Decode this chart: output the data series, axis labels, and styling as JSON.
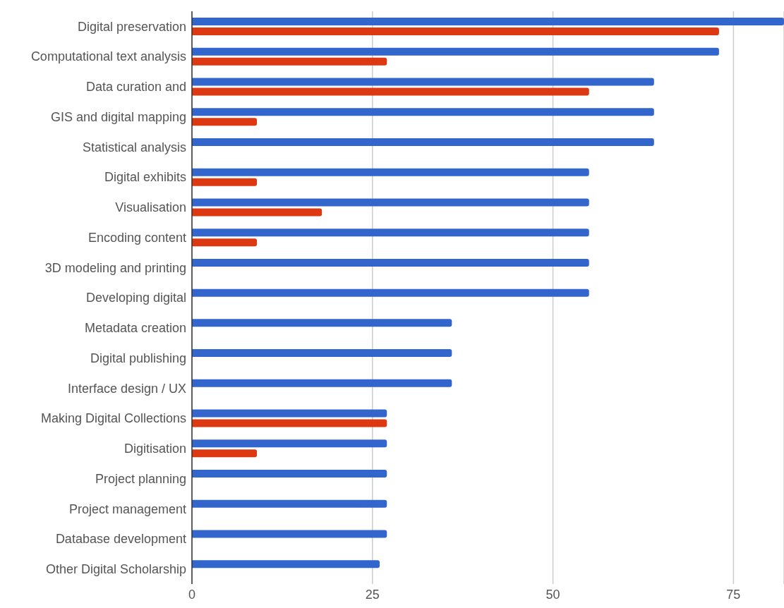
{
  "chart_data": {
    "type": "bar",
    "orientation": "horizontal",
    "categories": [
      "Digital preservation",
      "Computational text analysis",
      "Data curation and",
      "GIS and digital mapping",
      "Statistical analysis",
      "Digital exhibits",
      "Visualisation",
      "Encoding content",
      "3D modeling and printing",
      "Developing digital",
      "Metadata creation",
      "Digital publishing",
      "Interface design / UX",
      "Making Digital Collections",
      "Digitisation",
      "Project planning",
      "Project management",
      "Database development",
      "Other Digital Scholarship"
    ],
    "series": [
      {
        "color": "#3366cc",
        "values": [
          82,
          73,
          64,
          64,
          64,
          55,
          55,
          55,
          55,
          55,
          36,
          36,
          36,
          27,
          27,
          27,
          27,
          27,
          26
        ]
      },
      {
        "color": "#dc3912",
        "values": [
          73,
          27,
          55,
          9,
          null,
          9,
          18,
          9,
          null,
          null,
          null,
          null,
          null,
          27,
          9,
          null,
          null,
          null,
          null
        ]
      }
    ],
    "xlim": [
      0,
      82
    ],
    "xticks": [
      0,
      25,
      50,
      75
    ],
    "grid": "x"
  }
}
